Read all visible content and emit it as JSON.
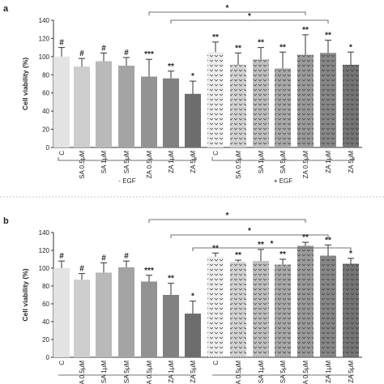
{
  "chart_data": [
    {
      "type": "bar",
      "panel_label": "a",
      "ylabel": "Cell viability (%)",
      "ylim": [
        0,
        140
      ],
      "yticks": [
        "0",
        "20",
        "40",
        "60",
        "80",
        "100",
        "120",
        "140"
      ],
      "categories": [
        "C",
        "SA 0.5μM",
        "SA 1μM",
        "SA 5μM",
        "ZA 0.5μM",
        "ZA 1μM",
        "ZA 5μM",
        "C",
        "SA 0.5μM",
        "SA 1μM",
        "SA 5μM",
        "ZA 0.5μM",
        "ZA 1μM",
        "ZA 5μM"
      ],
      "values": [
        100,
        89,
        95,
        90,
        78,
        76,
        59,
        105,
        91,
        97,
        87,
        102,
        104,
        91
      ],
      "errors": [
        10,
        9,
        9,
        9,
        19,
        8,
        14,
        11,
        13,
        13,
        18,
        22,
        14,
        14
      ],
      "sig_labels": [
        "#",
        "#",
        "#",
        "#",
        "***",
        "**",
        "*",
        "**",
        "**",
        "**",
        "**",
        "**",
        "**",
        "*"
      ],
      "groups": [
        {
          "label": "- EGF",
          "from": 0,
          "to": 6
        },
        {
          "label": "+ EGF",
          "from": 7,
          "to": 13
        }
      ],
      "comparison_brackets": [
        {
          "from": 4,
          "to": 11,
          "label": "*"
        },
        {
          "from": 5,
          "to": 12,
          "label": "*"
        }
      ]
    },
    {
      "type": "bar",
      "panel_label": "b",
      "ylabel": "Cell viability (%)",
      "ylim": [
        0,
        140
      ],
      "yticks": [
        "0",
        "20",
        "40",
        "60",
        "80",
        "100",
        "120",
        "140"
      ],
      "categories": [
        "C",
        "SA 0.5μM",
        "SA 1μM",
        "SA 5μM",
        "ZA 0.5μM",
        "ZA 1μM",
        "ZA 5μM",
        "C",
        "SA 0.5μM",
        "SA 1μM",
        "SA 5μM",
        "ZA 0.5μM",
        "ZA 1μM",
        "ZA 5μM"
      ],
      "values": [
        100,
        87,
        95,
        101,
        85,
        70,
        49,
        113,
        107,
        108,
        104,
        125,
        114,
        105
      ],
      "errors": [
        8,
        7,
        11,
        7,
        7,
        13,
        14,
        4,
        2,
        13,
        6,
        4,
        12,
        6
      ],
      "sig_labels": [
        "#",
        "#",
        "#",
        "#",
        "***",
        "**",
        "*",
        "**",
        "**",
        "**",
        "**",
        "**",
        "**",
        "*"
      ],
      "groups": [],
      "comparison_brackets": [
        {
          "from": 4,
          "to": 11,
          "label": "*"
        },
        {
          "from": 5,
          "to": 12,
          "label": "*"
        },
        {
          "from": 6,
          "to": 13,
          "label": "*"
        }
      ]
    }
  ],
  "colors": {
    "minus_egf": [
      "#e3e3e3",
      "#cdcdcd",
      "#b9b9b9",
      "#a4a4a4",
      "#939393",
      "#818181",
      "#6d6d6d"
    ],
    "plus_egf_fill": [
      "#eeeeee",
      "#d3d3d3",
      "#c0c0c0",
      "#a9a9a9",
      "#9b9b9b",
      "#878787",
      "#757575"
    ],
    "pattern": "#3a3a3a",
    "axis": "#333333"
  }
}
